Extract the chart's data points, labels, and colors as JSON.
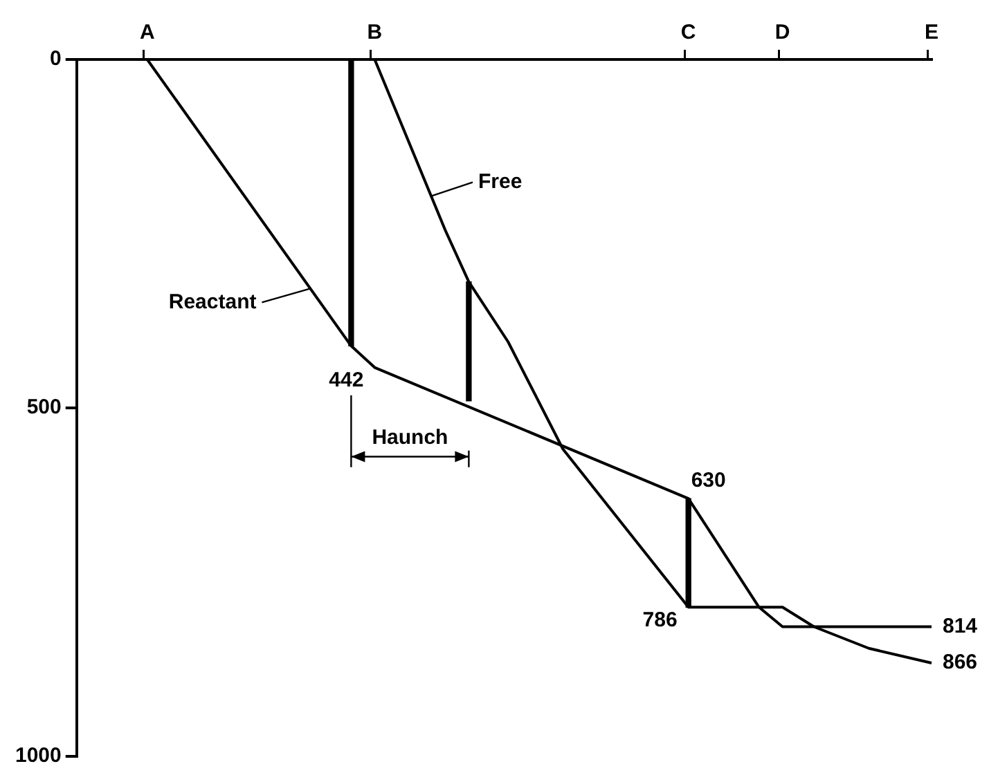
{
  "chart_data": {
    "type": "line",
    "categories": [
      null,
      null,
      null,
      null,
      null,
      null,
      null,
      null,
      null,
      "A",
      null,
      null,
      null,
      null,
      null,
      null,
      null,
      null,
      null,
      null,
      null,
      null,
      null,
      null,
      null,
      null,
      null,
      null,
      null,
      null,
      null,
      null,
      null,
      null,
      null,
      null,
      null,
      null,
      "B",
      null,
      null,
      null,
      null,
      null,
      null,
      null,
      null,
      null,
      null,
      null,
      null,
      null,
      null,
      null,
      null,
      null,
      null,
      null,
      null,
      null,
      null,
      null,
      null,
      null,
      null,
      null,
      null,
      null,
      null,
      null,
      null,
      null,
      null,
      null,
      null,
      null,
      null,
      null,
      "C",
      null,
      null,
      null,
      null,
      null,
      null,
      null,
      null,
      null,
      null,
      null,
      "D",
      null,
      null,
      null,
      null,
      null,
      null,
      null,
      null,
      null,
      null,
      null,
      null,
      null,
      null,
      null,
      null,
      null,
      null,
      "E"
    ],
    "ylim": [
      1000,
      0
    ],
    "yticks": [
      0,
      500,
      1000
    ],
    "grid": false,
    "marker": "none",
    "series": [
      {
        "name": "Reactant",
        "color": "#000000",
        "values": [
          null,
          null,
          null,
          null,
          null,
          null,
          null,
          null,
          null,
          0,
          null,
          null,
          null,
          null,
          null,
          null,
          null,
          null,
          null,
          null,
          null,
          null,
          null,
          null,
          null,
          null,
          null,
          null,
          null,
          null,
          null,
          null,
          null,
          null,
          null,
          411,
          null,
          null,
          442,
          null,
          null,
          null,
          null,
          null,
          null,
          null,
          null,
          null,
          null,
          null,
          null,
          null,
          null,
          null,
          null,
          null,
          null,
          null,
          null,
          null,
          null,
          null,
          null,
          null,
          null,
          null,
          null,
          null,
          null,
          null,
          null,
          null,
          null,
          null,
          null,
          null,
          null,
          null,
          630,
          null,
          null,
          null,
          null,
          null,
          null,
          null,
          null,
          786,
          null,
          null,
          814,
          null,
          null,
          null,
          null,
          null,
          null,
          null,
          null,
          null,
          null,
          null,
          null,
          null,
          null,
          null,
          null,
          null,
          null,
          814
        ]
      },
      {
        "name": "Free",
        "color": "#000000",
        "values": [
          null,
          null,
          null,
          null,
          null,
          null,
          null,
          null,
          null,
          null,
          null,
          null,
          null,
          null,
          null,
          null,
          null,
          null,
          null,
          null,
          null,
          null,
          null,
          null,
          null,
          null,
          null,
          null,
          null,
          null,
          null,
          null,
          null,
          null,
          null,
          null,
          null,
          null,
          0,
          null,
          null,
          null,
          null,
          null,
          null,
          null,
          null,
          245,
          null,
          null,
          319,
          null,
          null,
          null,
          null,
          405,
          null,
          null,
          null,
          null,
          null,
          null,
          559,
          null,
          null,
          null,
          null,
          null,
          null,
          null,
          null,
          null,
          null,
          null,
          null,
          null,
          null,
          null,
          786,
          null,
          null,
          null,
          null,
          null,
          null,
          null,
          null,
          null,
          null,
          null,
          786,
          null,
          null,
          null,
          814,
          null,
          null,
          null,
          null,
          null,
          null,
          845,
          null,
          null,
          null,
          null,
          null,
          null,
          null,
          866
        ]
      },
      {
        "type": "bar",
        "color": "#000000",
        "base": [
          null,
          null,
          null,
          null,
          null,
          null,
          null,
          null,
          null,
          null,
          null,
          null,
          null,
          null,
          null,
          null,
          null,
          null,
          null,
          null,
          null,
          null,
          null,
          null,
          null,
          null,
          null,
          null,
          null,
          null,
          null,
          null,
          null,
          null,
          null,
          0,
          null,
          null,
          null,
          null,
          null,
          null,
          null,
          null,
          null,
          null,
          null,
          null,
          null,
          null,
          null,
          null,
          null,
          null,
          null,
          null,
          null,
          null,
          null,
          null,
          null,
          null,
          null,
          null,
          null,
          null,
          null,
          null,
          null,
          null,
          null,
          null,
          null,
          null,
          null,
          null,
          null,
          null,
          630,
          null,
          null,
          null,
          null,
          null,
          null,
          null,
          null,
          null,
          null,
          null,
          null,
          null,
          null,
          null,
          null,
          null,
          null,
          null,
          null,
          null,
          null,
          null,
          null,
          null,
          null,
          null,
          null,
          null,
          null,
          null
        ],
        "values": [
          null,
          null,
          null,
          null,
          null,
          null,
          null,
          null,
          null,
          null,
          null,
          null,
          null,
          null,
          null,
          null,
          null,
          null,
          null,
          null,
          null,
          null,
          null,
          null,
          null,
          null,
          null,
          null,
          null,
          null,
          null,
          null,
          null,
          null,
          null,
          411,
          null,
          null,
          null,
          null,
          null,
          null,
          null,
          null,
          null,
          null,
          null,
          null,
          null,
          null,
          null,
          null,
          null,
          null,
          null,
          null,
          null,
          null,
          null,
          null,
          null,
          null,
          null,
          null,
          null,
          null,
          null,
          null,
          null,
          null,
          null,
          null,
          null,
          null,
          null,
          null,
          null,
          null,
          156,
          null,
          null,
          null,
          null,
          null,
          null,
          null,
          null,
          null,
          null,
          null,
          null,
          null,
          null,
          null,
          null,
          null,
          null,
          null,
          null,
          null,
          null,
          null,
          null,
          null,
          null,
          null,
          null,
          null,
          null,
          null
        ]
      },
      {
        "type": "bar",
        "color": "#000000",
        "base": [
          null,
          null,
          null,
          null,
          null,
          null,
          null,
          null,
          null,
          null,
          null,
          null,
          null,
          null,
          null,
          null,
          null,
          null,
          null,
          null,
          null,
          null,
          null,
          null,
          null,
          null,
          null,
          null,
          null,
          null,
          null,
          null,
          null,
          null,
          null,
          null,
          null,
          null,
          null,
          null,
          null,
          null,
          null,
          null,
          null,
          null,
          null,
          null,
          null,
          null,
          319,
          null,
          null,
          null,
          null,
          null,
          null,
          null,
          null,
          null,
          null,
          null,
          null,
          null,
          null,
          null,
          null,
          null,
          null,
          null,
          null,
          null,
          null,
          null,
          null,
          null,
          null,
          null,
          null,
          null,
          null,
          null,
          null,
          null,
          null,
          null,
          null,
          null,
          null,
          null,
          null,
          null,
          null,
          null,
          null,
          null,
          null,
          null,
          null,
          null,
          null,
          null,
          null,
          null,
          null,
          null,
          null,
          null,
          null,
          null
        ],
        "values": [
          null,
          null,
          null,
          null,
          null,
          null,
          null,
          null,
          null,
          null,
          null,
          null,
          null,
          null,
          null,
          null,
          null,
          null,
          null,
          null,
          null,
          null,
          null,
          null,
          null,
          null,
          null,
          null,
          null,
          null,
          null,
          null,
          null,
          null,
          null,
          null,
          null,
          null,
          null,
          null,
          null,
          null,
          null,
          null,
          null,
          null,
          null,
          null,
          null,
          null,
          171,
          null,
          null,
          null,
          null,
          null,
          null,
          null,
          null,
          null,
          null,
          null,
          null,
          null,
          null,
          null,
          null,
          null,
          null,
          null,
          null,
          null,
          null,
          null,
          null,
          null,
          null,
          null,
          null,
          null,
          null,
          null,
          null,
          null,
          null,
          null,
          null,
          null,
          null,
          null,
          null,
          null,
          null,
          null,
          null,
          null,
          null,
          null,
          null,
          null,
          null,
          null,
          null,
          null,
          null,
          null,
          null,
          null,
          null,
          null
        ]
      }
    ],
    "annotations": [
      "Haunch",
      {
        "text": "442",
        "x": "B",
        "y": 442
      },
      {
        "text": "630",
        "x": "C",
        "y": 630
      },
      {
        "text": "786",
        "x": "C",
        "y": 786
      },
      {
        "text": "814",
        "x": "E",
        "y": 814
      },
      {
        "text": "866",
        "x": "E",
        "y": 866
      }
    ]
  }
}
